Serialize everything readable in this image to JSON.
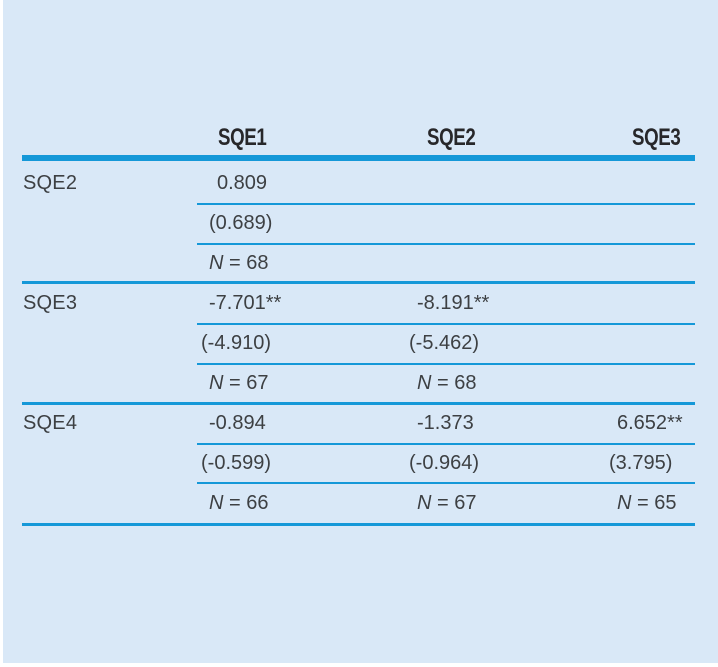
{
  "colors": {
    "page": "#ffffff",
    "panel": "#d9e8f7",
    "accent": "#1598d8",
    "text": "#3d4043",
    "header-text": "#27272a"
  },
  "table": {
    "col_headers": [
      "SQE1",
      "SQE2",
      "SQE3"
    ],
    "groups": [
      {
        "label": "SQE2",
        "cells": [
          {
            "coef": "0.809",
            "stat": "(0.689)",
            "n_prefix": "N",
            "n_rest": " = 68"
          }
        ]
      },
      {
        "label": "SQE3",
        "cells": [
          {
            "coef": "-7.701**",
            "stat": "(-4.910)",
            "n_prefix": "N",
            "n_rest": " = 67"
          },
          {
            "coef": "-8.191**",
            "stat": "(-5.462)",
            "n_prefix": "N",
            "n_rest": " = 68"
          }
        ]
      },
      {
        "label": "SQE4",
        "cells": [
          {
            "coef": "-0.894",
            "stat": "(-0.599)",
            "n_prefix": "N",
            "n_rest": " = 66"
          },
          {
            "coef": "-1.373",
            "stat": "(-0.964)",
            "n_prefix": "N",
            "n_rest": " = 67"
          },
          {
            "coef": "6.652**",
            "stat": "(3.795)",
            "n_prefix": "N",
            "n_rest": " = 65"
          }
        ]
      }
    ]
  }
}
